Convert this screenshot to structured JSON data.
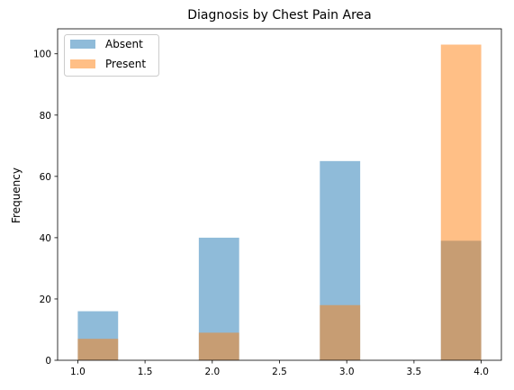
{
  "chart_data": {
    "type": "bar",
    "title": "Diagnosis by Chest Pain Area",
    "xlabel": "",
    "ylabel": "Frequency",
    "xlim": [
      0.85,
      4.15
    ],
    "ylim": [
      0,
      108.15
    ],
    "xticks": [
      1.0,
      1.5,
      2.0,
      2.5,
      3.0,
      3.5,
      4.0
    ],
    "xtick_labels": [
      "1.0",
      "1.5",
      "2.0",
      "2.5",
      "3.0",
      "3.5",
      "4.0"
    ],
    "yticks": [
      0,
      20,
      40,
      60,
      80,
      100
    ],
    "ytick_labels": [
      "0",
      "20",
      "40",
      "60",
      "80",
      "100"
    ],
    "bin_edges": [
      1.0,
      1.3,
      1.6,
      1.9,
      2.2,
      2.5,
      2.8,
      3.1,
      3.4,
      3.7,
      4.0
    ],
    "series": [
      {
        "name": "Absent",
        "color": "#1f77b4",
        "opacity": 0.5,
        "values": [
          16,
          0,
          0,
          40,
          0,
          0,
          65,
          0,
          0,
          39
        ]
      },
      {
        "name": "Present",
        "color": "#ff7f0e",
        "opacity": 0.5,
        "values": [
          7,
          0,
          0,
          9,
          0,
          0,
          18,
          0,
          0,
          103
        ]
      }
    ],
    "legend": {
      "position": "top-left"
    },
    "grid": false
  }
}
